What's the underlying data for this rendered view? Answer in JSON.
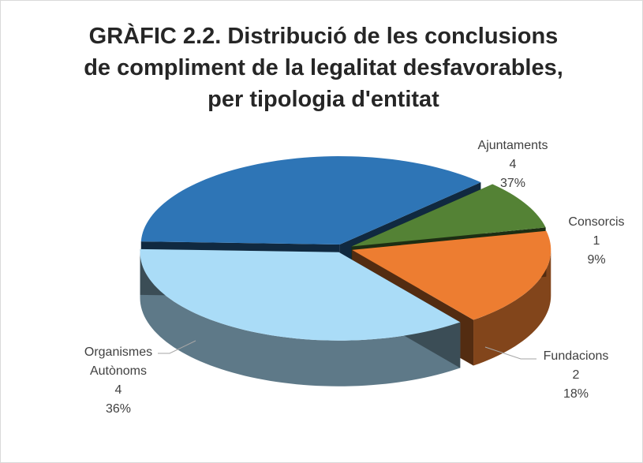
{
  "chart_data": {
    "type": "pie3d",
    "title": "GRÀFIC 2.2. Distribució de les conclusions de compliment de la legalitat desfavorables, per tipologia d'entitat",
    "categories": [
      "Ajuntaments",
      "Consorcis",
      "Fundacions",
      "Organismes Autònoms"
    ],
    "values": [
      4,
      1,
      2,
      4
    ],
    "percentages": [
      37,
      9,
      18,
      36
    ],
    "percentage_labels": [
      "37%",
      "9%",
      "18%",
      "36%"
    ],
    "colors": [
      "#2e75b6",
      "#548235",
      "#ed7d31",
      "#aadcf7"
    ]
  }
}
